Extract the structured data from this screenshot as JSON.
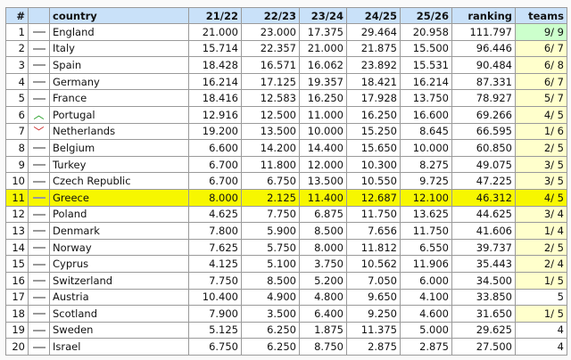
{
  "headers": [
    "#",
    "",
    "country",
    "21/22",
    "22/23",
    "23/24",
    "24/25",
    "25/26",
    "ranking",
    "teams"
  ],
  "highlight_color": "#f7f700",
  "rows": [
    {
      "rank": "1",
      "trend": "flat",
      "country": "England",
      "s": [
        "21.000",
        "23.000",
        "17.375",
        "29.464",
        "20.958"
      ],
      "ranking": "111.797",
      "teams": "9/ 9",
      "teams_status": "full"
    },
    {
      "rank": "2",
      "trend": "flat",
      "country": "Italy",
      "s": [
        "15.714",
        "22.357",
        "21.000",
        "21.875",
        "15.500"
      ],
      "ranking": "96.446",
      "teams": "6/ 7",
      "teams_status": "partial"
    },
    {
      "rank": "3",
      "trend": "flat",
      "country": "Spain",
      "s": [
        "18.428",
        "16.571",
        "16.062",
        "23.892",
        "15.531"
      ],
      "ranking": "90.484",
      "teams": "6/ 8",
      "teams_status": "partial"
    },
    {
      "rank": "4",
      "trend": "flat",
      "country": "Germany",
      "s": [
        "16.214",
        "17.125",
        "19.357",
        "18.421",
        "16.214"
      ],
      "ranking": "87.331",
      "teams": "6/ 7",
      "teams_status": "partial"
    },
    {
      "rank": "5",
      "trend": "flat",
      "country": "France",
      "s": [
        "18.416",
        "12.583",
        "16.250",
        "17.928",
        "13.750"
      ],
      "ranking": "78.927",
      "teams": "5/ 7",
      "teams_status": "partial"
    },
    {
      "rank": "6",
      "trend": "up",
      "country": "Portugal",
      "s": [
        "12.916",
        "12.500",
        "11.000",
        "16.250",
        "16.600"
      ],
      "ranking": "69.266",
      "teams": "4/ 5",
      "teams_status": "partial"
    },
    {
      "rank": "7",
      "trend": "down",
      "country": "Netherlands",
      "s": [
        "19.200",
        "13.500",
        "10.000",
        "15.250",
        "8.645"
      ],
      "ranking": "66.595",
      "teams": "1/ 6",
      "teams_status": "partial"
    },
    {
      "rank": "8",
      "trend": "flat",
      "country": "Belgium",
      "s": [
        "6.600",
        "14.200",
        "14.400",
        "15.650",
        "10.000"
      ],
      "ranking": "60.850",
      "teams": "2/ 5",
      "teams_status": "partial"
    },
    {
      "rank": "9",
      "trend": "flat",
      "country": "Turkey",
      "s": [
        "6.700",
        "11.800",
        "12.000",
        "10.300",
        "8.275"
      ],
      "ranking": "49.075",
      "teams": "3/ 5",
      "teams_status": "partial"
    },
    {
      "rank": "10",
      "trend": "flat",
      "country": "Czech Republic",
      "s": [
        "6.700",
        "6.750",
        "13.500",
        "10.550",
        "9.725"
      ],
      "ranking": "47.225",
      "teams": "3/ 5",
      "teams_status": "partial"
    },
    {
      "rank": "11",
      "trend": "flat",
      "country": "Greece",
      "s": [
        "8.000",
        "2.125",
        "11.400",
        "12.687",
        "12.100"
      ],
      "ranking": "46.312",
      "teams": "4/ 5",
      "teams_status": "partial",
      "highlighted": true
    },
    {
      "rank": "12",
      "trend": "flat",
      "country": "Poland",
      "s": [
        "4.625",
        "7.750",
        "6.875",
        "11.750",
        "13.625"
      ],
      "ranking": "44.625",
      "teams": "3/ 4",
      "teams_status": "partial"
    },
    {
      "rank": "13",
      "trend": "flat",
      "country": "Denmark",
      "s": [
        "7.800",
        "5.900",
        "8.500",
        "7.656",
        "11.750"
      ],
      "ranking": "41.606",
      "teams": "1/ 4",
      "teams_status": "partial"
    },
    {
      "rank": "14",
      "trend": "flat",
      "country": "Norway",
      "s": [
        "7.625",
        "5.750",
        "8.000",
        "11.812",
        "6.550"
      ],
      "ranking": "39.737",
      "teams": "2/ 5",
      "teams_status": "partial"
    },
    {
      "rank": "15",
      "trend": "flat",
      "country": "Cyprus",
      "s": [
        "4.125",
        "5.100",
        "3.750",
        "10.562",
        "11.906"
      ],
      "ranking": "35.443",
      "teams": "2/ 4",
      "teams_status": "partial"
    },
    {
      "rank": "16",
      "trend": "flat",
      "country": "Switzerland",
      "s": [
        "7.750",
        "8.500",
        "5.200",
        "7.050",
        "6.000"
      ],
      "ranking": "34.500",
      "teams": "1/ 5",
      "teams_status": "partial"
    },
    {
      "rank": "17",
      "trend": "flat",
      "country": "Austria",
      "s": [
        "10.400",
        "4.900",
        "4.800",
        "9.650",
        "4.100"
      ],
      "ranking": "33.850",
      "teams": "5",
      "teams_status": "none"
    },
    {
      "rank": "18",
      "trend": "flat",
      "country": "Scotland",
      "s": [
        "7.900",
        "3.500",
        "6.400",
        "9.250",
        "4.600"
      ],
      "ranking": "31.650",
      "teams": "1/ 5",
      "teams_status": "partial"
    },
    {
      "rank": "19",
      "trend": "flat",
      "country": "Sweden",
      "s": [
        "5.125",
        "6.250",
        "1.875",
        "11.375",
        "5.000"
      ],
      "ranking": "29.625",
      "teams": "4",
      "teams_status": "none"
    },
    {
      "rank": "20",
      "trend": "flat",
      "country": "Israel",
      "s": [
        "6.750",
        "6.250",
        "8.750",
        "2.875",
        "2.875"
      ],
      "ranking": "27.500",
      "teams": "4",
      "teams_status": "none"
    }
  ]
}
